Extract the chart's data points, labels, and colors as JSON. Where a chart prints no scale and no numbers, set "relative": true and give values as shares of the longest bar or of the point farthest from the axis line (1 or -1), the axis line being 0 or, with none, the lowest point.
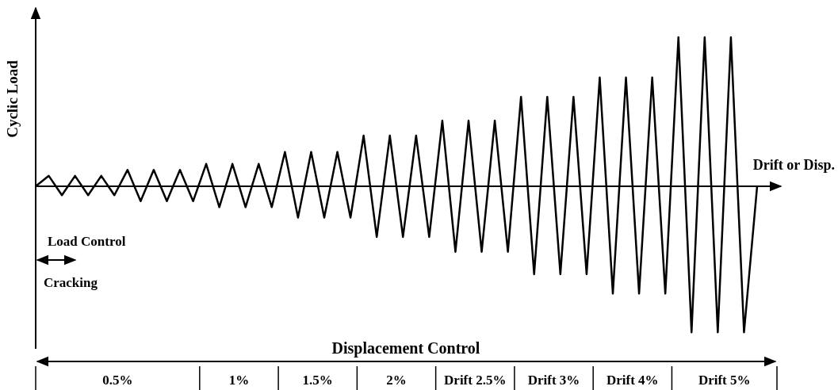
{
  "chart_data": {
    "type": "line",
    "relative": true,
    "ylabel": "Cyclic Load",
    "xlabel": "Drift or Disp.",
    "categories": [
      null,
      null,
      null,
      null,
      null,
      null,
      null,
      null,
      null,
      null,
      null,
      null,
      null,
      null,
      null,
      null,
      null,
      null,
      null,
      null,
      null,
      null,
      null,
      null,
      null,
      null,
      null,
      null,
      null,
      null,
      null,
      null,
      null,
      null,
      null,
      null,
      null,
      null,
      null,
      null,
      null,
      null,
      null,
      null,
      null,
      null,
      null,
      null,
      null,
      null,
      null,
      null,
      null,
      null,
      null,
      null
    ],
    "series": [
      {
        "color": "#000000",
        "values": [
          0,
          0.07,
          -0.06,
          0.07,
          -0.06,
          0.07,
          -0.06,
          0.11,
          -0.1,
          0.11,
          -0.1,
          0.11,
          -0.1,
          0.15,
          -0.14,
          0.15,
          -0.14,
          0.15,
          -0.14,
          0.23,
          -0.21,
          0.23,
          -0.21,
          0.23,
          -0.21,
          0.34,
          -0.34,
          0.34,
          -0.34,
          0.34,
          -0.34,
          0.44,
          -0.44,
          0.44,
          -0.44,
          0.44,
          -0.44,
          0.6,
          -0.59,
          0.6,
          -0.59,
          0.6,
          -0.59,
          0.73,
          -0.72,
          0.73,
          -0.72,
          0.73,
          -0.72,
          1,
          -0.98,
          1,
          -0.98,
          1,
          -0.98,
          0
        ]
      }
    ],
    "annotations": [
      "Load Control",
      "Cracking",
      "Displacement Control",
      "0.5%",
      "1%",
      "1.5%",
      "2%",
      "Drift 2.5%",
      "Drift 3%",
      "Drift 4%",
      "Drift 5%"
    ]
  }
}
